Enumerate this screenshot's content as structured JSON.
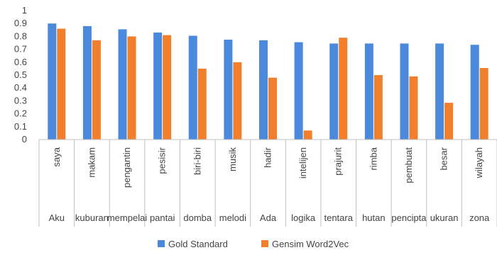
{
  "chart_data": {
    "type": "bar",
    "title": "",
    "xlabel": "",
    "ylabel": "",
    "ylim": [
      0,
      1
    ],
    "yticks": [
      "0",
      "0.1",
      "0.2",
      "0.3",
      "0.4",
      "0.5",
      "0.6",
      "0.7",
      "0.8",
      "0.9",
      "1"
    ],
    "grid": false,
    "legend_position": "bottom",
    "categories_inner": [
      "saya",
      "makam",
      "pengantin",
      "pesisir",
      "biri-biri",
      "musik",
      "hadir",
      "intelijen",
      "prajurit",
      "rimba",
      "pembuat",
      "besar",
      "wilayah"
    ],
    "categories_outer": [
      "Aku",
      "kuburan",
      "mempelai",
      "pantai",
      "domba",
      "melodi",
      "Ada",
      "logika",
      "tentara",
      "hutan",
      "pencipta",
      "ukuran",
      "zona"
    ],
    "series": [
      {
        "name": "Gold Standard",
        "color": "#4A89DC",
        "values": [
          0.9,
          0.88,
          0.855,
          0.83,
          0.805,
          0.775,
          0.77,
          0.755,
          0.745,
          0.745,
          0.745,
          0.745,
          0.735
        ]
      },
      {
        "name": "Gensim Word2Vec",
        "color": "#F07F2E",
        "values": [
          0.86,
          0.77,
          0.8,
          0.81,
          0.55,
          0.6,
          0.48,
          0.07,
          0.79,
          0.5,
          0.49,
          0.285,
          0.555
        ]
      }
    ]
  }
}
